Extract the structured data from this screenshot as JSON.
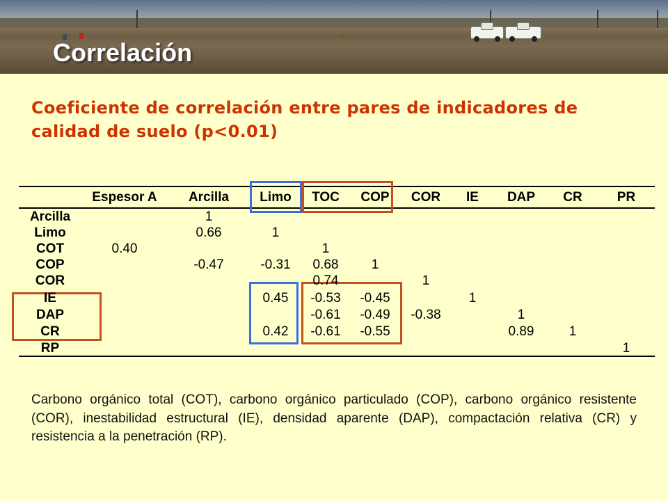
{
  "slide": {
    "title": "Correlación",
    "subtitle": "Coeficiente de correlación entre pares de indicadores de calidad de suelo (p<0.01)",
    "footnote": "Carbono orgánico total (COT), carbono orgánico particulado (COP), carbono orgánico resistente  (COR), inestabilidad estructural (IE), densidad aparente (DAP), compactación relativa (CR) y resistencia a la penetración (RP)."
  },
  "table": {
    "columns": [
      "Espesor A",
      "Arcilla",
      "Limo",
      "TOC",
      "COP",
      "COR",
      "IE",
      "DAP",
      "CR",
      "PR"
    ],
    "rows": [
      {
        "label": "Arcilla",
        "values": [
          "",
          "1",
          "",
          "",
          "",
          "",
          "",
          "",
          "",
          ""
        ]
      },
      {
        "label": "Limo",
        "values": [
          "",
          "0.66",
          "1",
          "",
          "",
          "",
          "",
          "",
          "",
          ""
        ]
      },
      {
        "label": "COT",
        "values": [
          "0.40",
          "",
          "",
          "1",
          "",
          "",
          "",
          "",
          "",
          ""
        ]
      },
      {
        "label": "COP",
        "values": [
          "",
          "-0.47",
          "-0.31",
          "0.68",
          "1",
          "",
          "",
          "",
          "",
          ""
        ]
      },
      {
        "label": "COR",
        "values": [
          "",
          "",
          "",
          "0.74",
          "",
          "1",
          "",
          "",
          "",
          ""
        ]
      },
      {
        "label": "IE",
        "values": [
          "",
          "",
          "0.45",
          "-0.53",
          "-0.45",
          "",
          "1",
          "",
          "",
          ""
        ]
      },
      {
        "label": "DAP",
        "values": [
          "",
          "",
          "",
          "-0.61",
          "-0.49",
          "-0.38",
          "",
          "1",
          "",
          ""
        ]
      },
      {
        "label": "CR",
        "values": [
          "",
          "",
          "0.42",
          "-0.61",
          "-0.55",
          "",
          "",
          "0.89",
          "1",
          ""
        ]
      },
      {
        "label": "RP",
        "values": [
          "",
          "",
          "",
          "",
          "",
          "",
          "",
          "",
          "",
          "1"
        ]
      }
    ]
  },
  "colors": {
    "background": "#ffffcc",
    "subtitle": "#cc3300",
    "highlight_blue": "#3b6fe0",
    "highlight_orange": "#c0501f"
  }
}
